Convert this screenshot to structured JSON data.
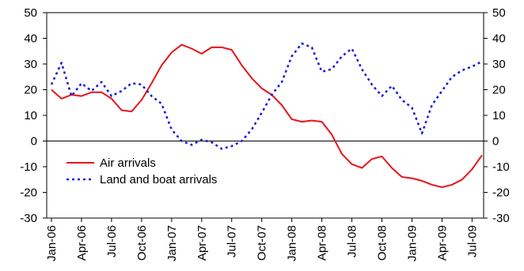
{
  "chart_data": {
    "type": "line",
    "y_left": {
      "min": -30,
      "max": 50,
      "step": 10
    },
    "y_right": {
      "min": -30,
      "max": 50,
      "step": 10
    },
    "x_tick_labels": [
      "Jan-06",
      "Apr-06",
      "Jul-06",
      "Oct-06",
      "Jan-07",
      "Apr-07",
      "Jul-07",
      "Oct-07",
      "Jan-08",
      "Apr-08",
      "Jul-08",
      "Oct-08",
      "Jan-09",
      "Apr-09",
      "Jul-09"
    ],
    "months": [
      "Jan-06",
      "Feb-06",
      "Mar-06",
      "Apr-06",
      "May-06",
      "Jun-06",
      "Jul-06",
      "Aug-06",
      "Sep-06",
      "Oct-06",
      "Nov-06",
      "Dec-06",
      "Jan-07",
      "Feb-07",
      "Mar-07",
      "Apr-07",
      "May-07",
      "Jun-07",
      "Jul-07",
      "Aug-07",
      "Sep-07",
      "Oct-07",
      "Nov-07",
      "Dec-07",
      "Jan-08",
      "Feb-08",
      "Mar-08",
      "Apr-08",
      "May-08",
      "Jun-08",
      "Jul-08",
      "Aug-08",
      "Sep-08",
      "Oct-08",
      "Nov-08",
      "Dec-08",
      "Jan-09",
      "Feb-09",
      "Mar-09",
      "Apr-09",
      "May-09",
      "Jun-09",
      "Jul-09",
      "Aug-09"
    ],
    "series": [
      {
        "name": "Air arrivals",
        "color": "#e8141b",
        "style": "solid",
        "values": [
          20,
          16.5,
          18,
          17.5,
          19,
          19,
          16.5,
          12,
          11.5,
          16,
          22.5,
          29.5,
          34.5,
          37.5,
          36,
          34,
          36.5,
          36.5,
          35.5,
          29.5,
          24.5,
          20.5,
          18,
          14,
          8.5,
          7.5,
          8,
          7.5,
          2.5,
          -5,
          -9,
          -10.5,
          -7,
          -6,
          -10.5,
          -14,
          -14.5,
          -15.5,
          -17,
          -18,
          -17,
          -15,
          -11,
          -5.5
        ]
      },
      {
        "name": "Land and boat arrivals",
        "color": "#1a1adb",
        "style": "dotted",
        "values": [
          22,
          30.5,
          17.5,
          22.5,
          19.5,
          23,
          17.5,
          19.5,
          22.5,
          22,
          17.5,
          14.5,
          4.5,
          0,
          -1.5,
          0.5,
          -0.5,
          -3,
          -2,
          0,
          4.5,
          11,
          18,
          23,
          33,
          38,
          36.5,
          27,
          28,
          33,
          36,
          28,
          22,
          17.5,
          21.5,
          16,
          13,
          3,
          14,
          19.5,
          25,
          27.5,
          29,
          31
        ]
      }
    ],
    "legend": {
      "placement": "lower-left",
      "entries": [
        "Air arrivals",
        "Land and boat arrivals"
      ]
    }
  }
}
